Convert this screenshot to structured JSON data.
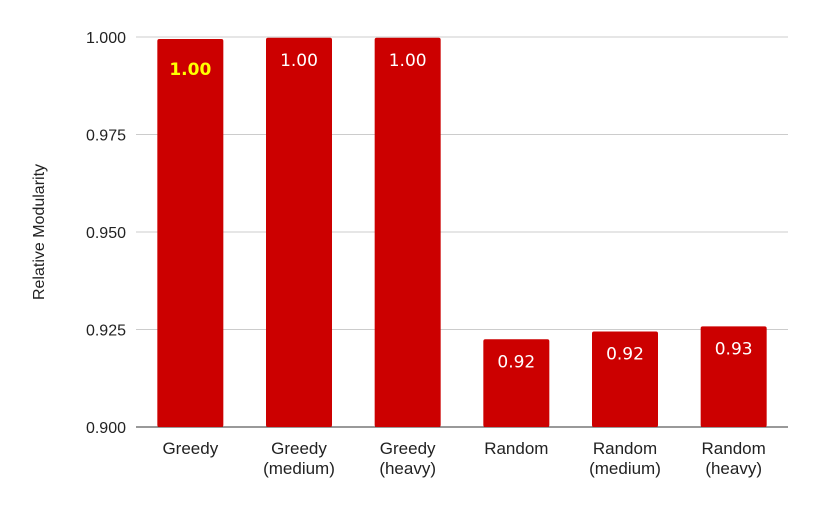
{
  "chart_data": {
    "type": "bar",
    "categories": [
      "Greedy",
      "Greedy\n(medium)",
      "Greedy\n(heavy)",
      "Random",
      "Random\n(medium)",
      "Random\n(heavy)"
    ],
    "values": [
      0.9995,
      0.9998,
      0.9998,
      0.9225,
      0.9245,
      0.9258
    ],
    "data_labels": [
      "1.00",
      "1.00",
      "1.00",
      "0.92",
      "0.92",
      "0.93"
    ],
    "highlight_index": 0,
    "title": "",
    "xlabel": "",
    "ylabel": "Relative Modularity",
    "ylim": [
      0.9,
      1.0
    ],
    "yticks": [
      0.9,
      0.925,
      0.95,
      0.975,
      1.0
    ],
    "ytick_labels": [
      "0.900",
      "0.925",
      "0.950",
      "0.975",
      "1.000"
    ],
    "grid": true,
    "legend": "none",
    "colors": {
      "bar": "#cc0000",
      "label": "#ffffff",
      "highlight_label": "#ffff00",
      "grid": "#cccccc",
      "text": "#222222"
    }
  }
}
